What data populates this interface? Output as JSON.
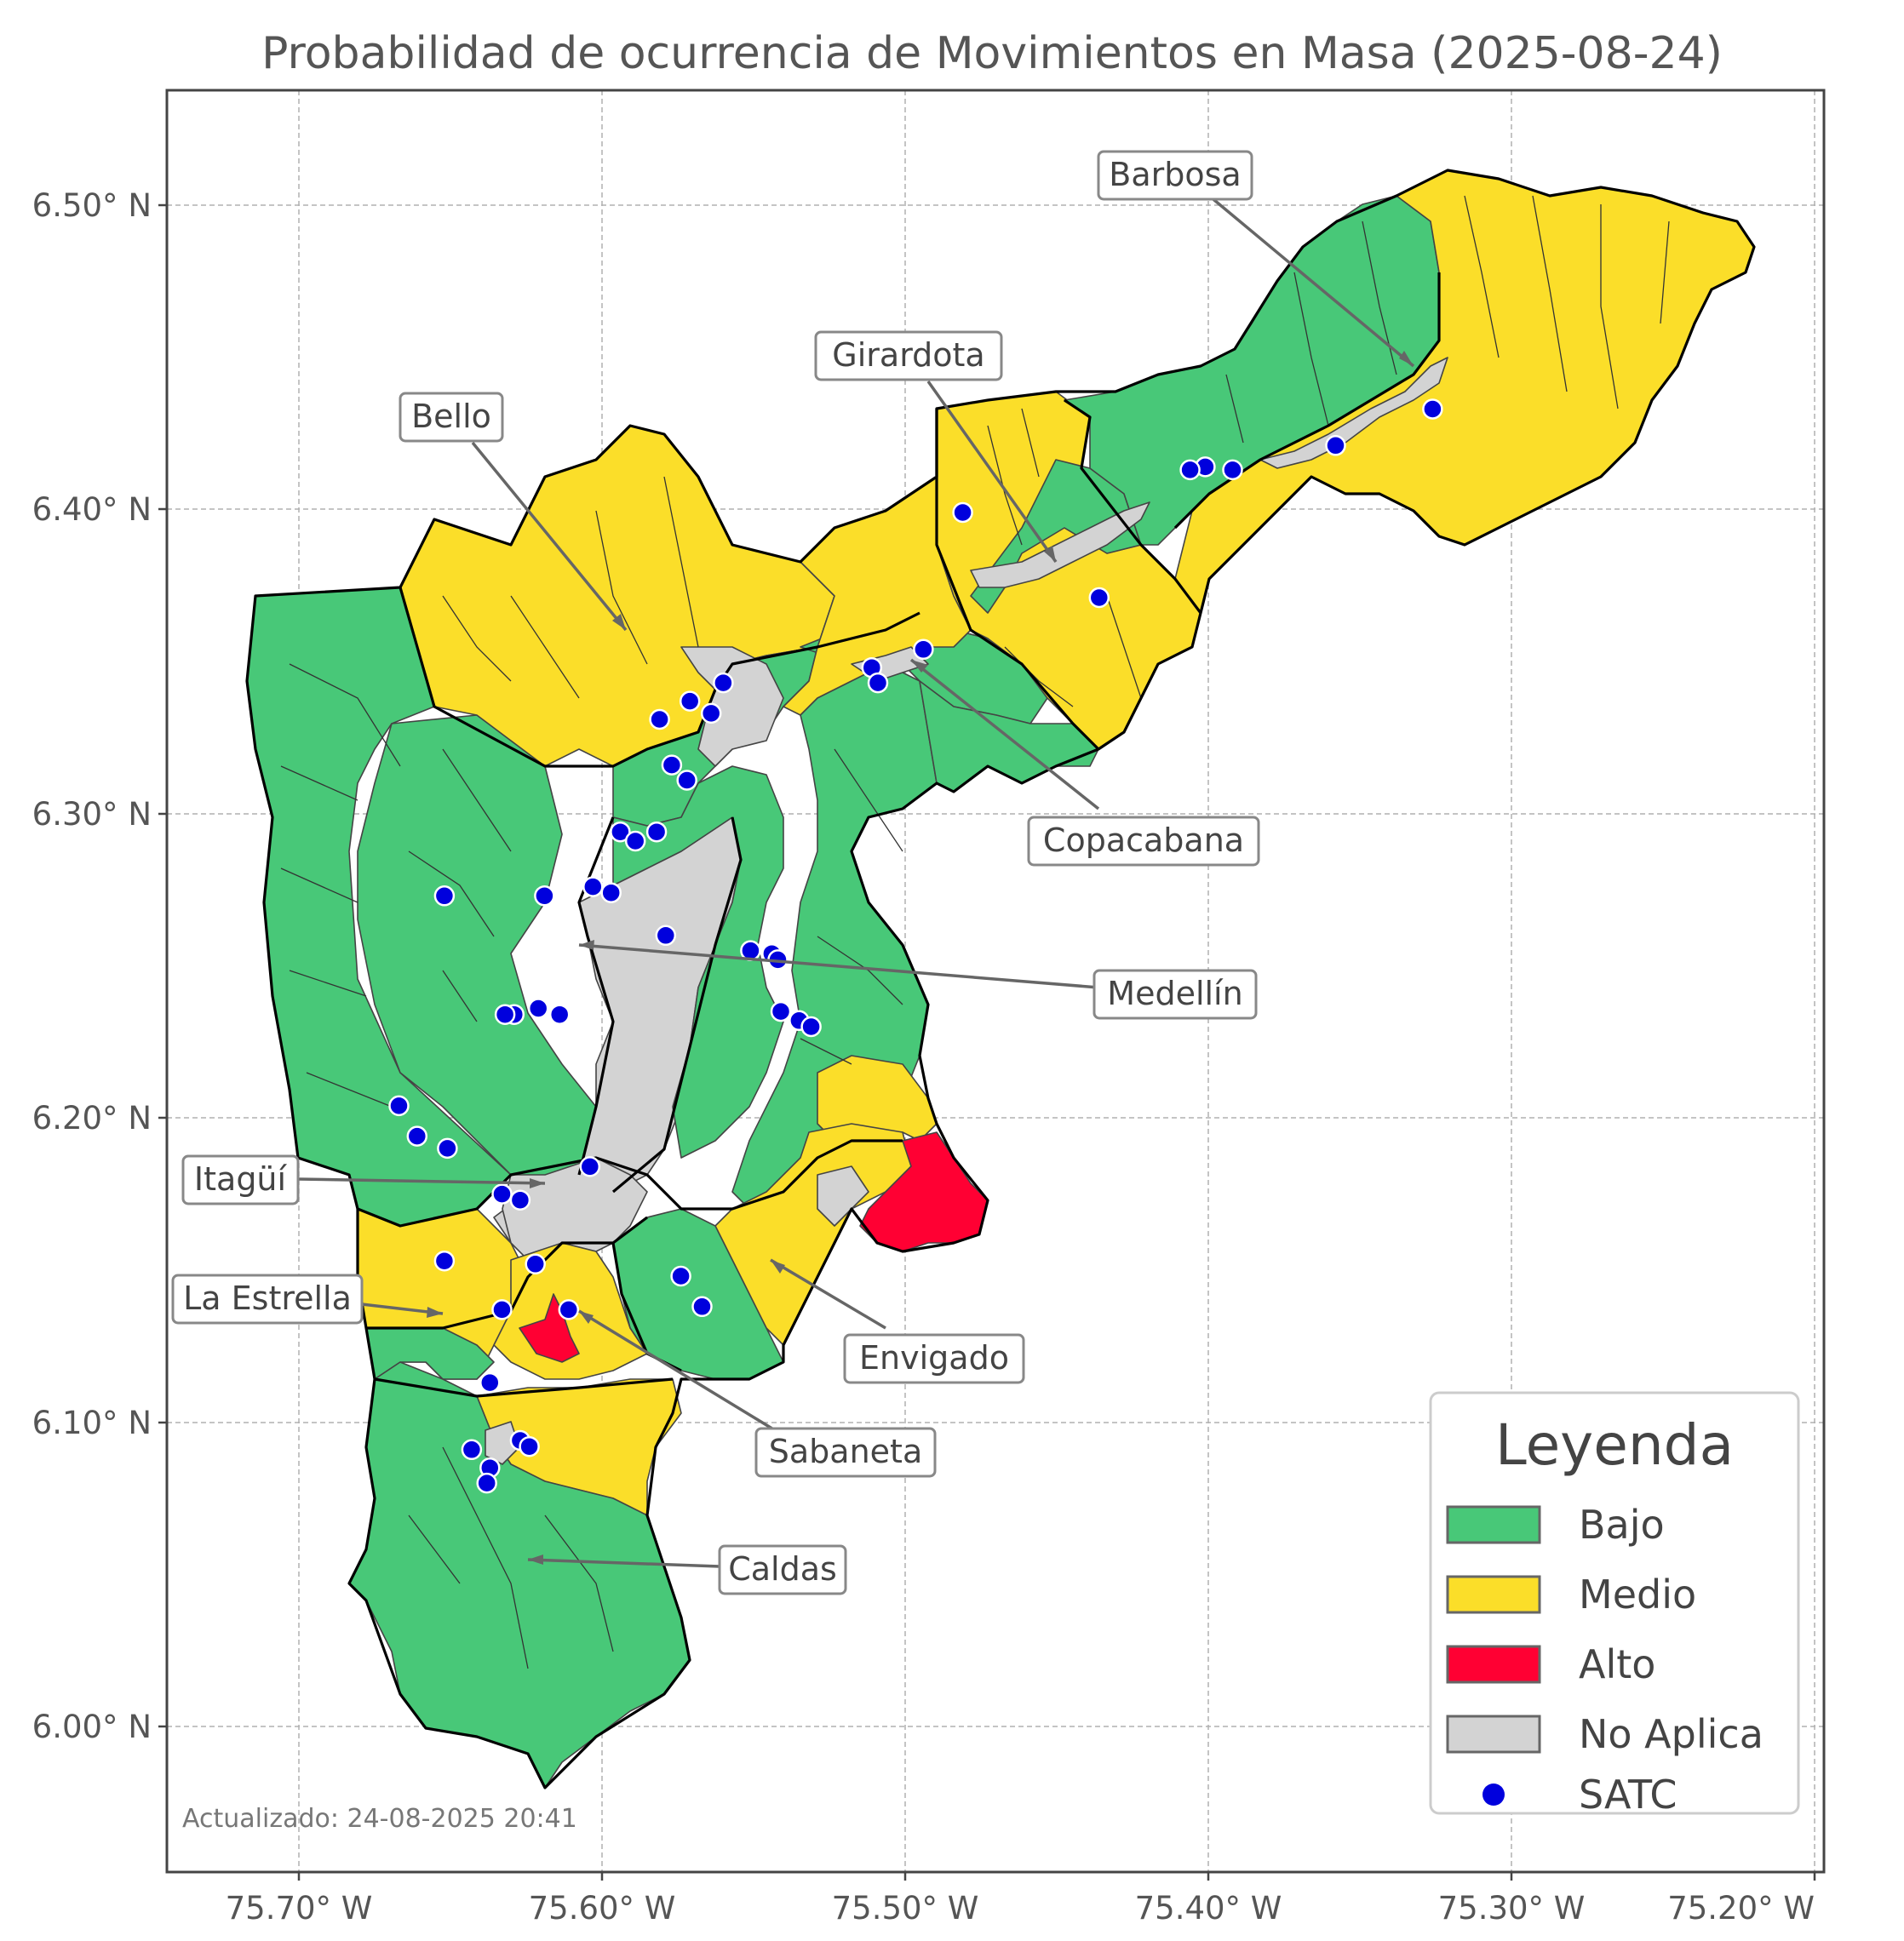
{
  "title": "Probabilidad de ocurrencia de Movimientos en Masa (2025-08-24)",
  "axes": {
    "x_ticks": [
      "75.70° W",
      "75.60° W",
      "75.50° W",
      "75.40° W",
      "75.30° W",
      "75.20° W"
    ],
    "y_ticks": [
      "6.50° N",
      "6.40° N",
      "6.30° N",
      "6.20° N",
      "6.10° N",
      "6.00° N"
    ]
  },
  "colors": {
    "bajo": "#48c878",
    "medio": "#fbde29",
    "alto": "#ff0033",
    "no_aplica": "#d3d3d3",
    "satc": "#0000dd"
  },
  "municipalities": [
    {
      "name": "Barbosa"
    },
    {
      "name": "Girardota"
    },
    {
      "name": "Bello"
    },
    {
      "name": "Copacabana"
    },
    {
      "name": "Medellín"
    },
    {
      "name": "Itagüí"
    },
    {
      "name": "La Estrella"
    },
    {
      "name": "Envigado"
    },
    {
      "name": "Sabaneta"
    },
    {
      "name": "Caldas"
    }
  ],
  "legend": {
    "title": "Leyenda",
    "items": [
      {
        "label": "Bajo",
        "color": "#48c878",
        "kind": "patch"
      },
      {
        "label": "Medio",
        "color": "#fbde29",
        "kind": "patch"
      },
      {
        "label": "Alto",
        "color": "#ff0033",
        "kind": "patch"
      },
      {
        "label": "No Aplica",
        "color": "#d3d3d3",
        "kind": "patch"
      },
      {
        "label": "SATC",
        "color": "#0000dd",
        "kind": "marker"
      }
    ]
  },
  "updated": "Actualizado: 24-08-2025 20:41",
  "satc_stations": [
    {
      "lon": -75.326,
      "lat": 6.433
    },
    {
      "lon": -75.358,
      "lat": 6.421
    },
    {
      "lon": -75.392,
      "lat": 6.413
    },
    {
      "lon": -75.401,
      "lat": 6.414
    },
    {
      "lon": -75.406,
      "lat": 6.413
    },
    {
      "lon": -75.481,
      "lat": 6.399
    },
    {
      "lon": -75.436,
      "lat": 6.371
    },
    {
      "lon": -75.494,
      "lat": 6.354
    },
    {
      "lon": -75.511,
      "lat": 6.348
    },
    {
      "lon": -75.509,
      "lat": 6.343
    },
    {
      "lon": -75.56,
      "lat": 6.343
    },
    {
      "lon": -75.571,
      "lat": 6.337
    },
    {
      "lon": -75.564,
      "lat": 6.333
    },
    {
      "lon": -75.581,
      "lat": 6.331
    },
    {
      "lon": -75.577,
      "lat": 6.316
    },
    {
      "lon": -75.572,
      "lat": 6.311
    },
    {
      "lon": -75.594,
      "lat": 6.294
    },
    {
      "lon": -75.589,
      "lat": 6.291
    },
    {
      "lon": -75.582,
      "lat": 6.294
    },
    {
      "lon": -75.652,
      "lat": 6.273
    },
    {
      "lon": -75.619,
      "lat": 6.273
    },
    {
      "lon": -75.603,
      "lat": 6.276
    },
    {
      "lon": -75.597,
      "lat": 6.274
    },
    {
      "lon": -75.579,
      "lat": 6.26
    },
    {
      "lon": -75.551,
      "lat": 6.255
    },
    {
      "lon": -75.544,
      "lat": 6.254
    },
    {
      "lon": -75.542,
      "lat": 6.252
    },
    {
      "lon": -75.541,
      "lat": 6.235
    },
    {
      "lon": -75.535,
      "lat": 6.232
    },
    {
      "lon": -75.531,
      "lat": 6.23
    },
    {
      "lon": -75.621,
      "lat": 6.236
    },
    {
      "lon": -75.614,
      "lat": 6.234
    },
    {
      "lon": -75.629,
      "lat": 6.234
    },
    {
      "lon": -75.632,
      "lat": 6.234
    },
    {
      "lon": -75.667,
      "lat": 6.204
    },
    {
      "lon": -75.661,
      "lat": 6.194
    },
    {
      "lon": -75.651,
      "lat": 6.19
    },
    {
      "lon": -75.604,
      "lat": 6.184
    },
    {
      "lon": -75.633,
      "lat": 6.175
    },
    {
      "lon": -75.627,
      "lat": 6.173
    },
    {
      "lon": -75.652,
      "lat": 6.153
    },
    {
      "lon": -75.622,
      "lat": 6.152
    },
    {
      "lon": -75.574,
      "lat": 6.148
    },
    {
      "lon": -75.567,
      "lat": 6.138
    },
    {
      "lon": -75.633,
      "lat": 6.137
    },
    {
      "lon": -75.611,
      "lat": 6.137
    },
    {
      "lon": -75.637,
      "lat": 6.113
    },
    {
      "lon": -75.643,
      "lat": 6.091
    },
    {
      "lon": -75.627,
      "lat": 6.094
    },
    {
      "lon": -75.624,
      "lat": 6.092
    },
    {
      "lon": -75.637,
      "lat": 6.085
    },
    {
      "lon": -75.638,
      "lat": 6.08
    }
  ]
}
